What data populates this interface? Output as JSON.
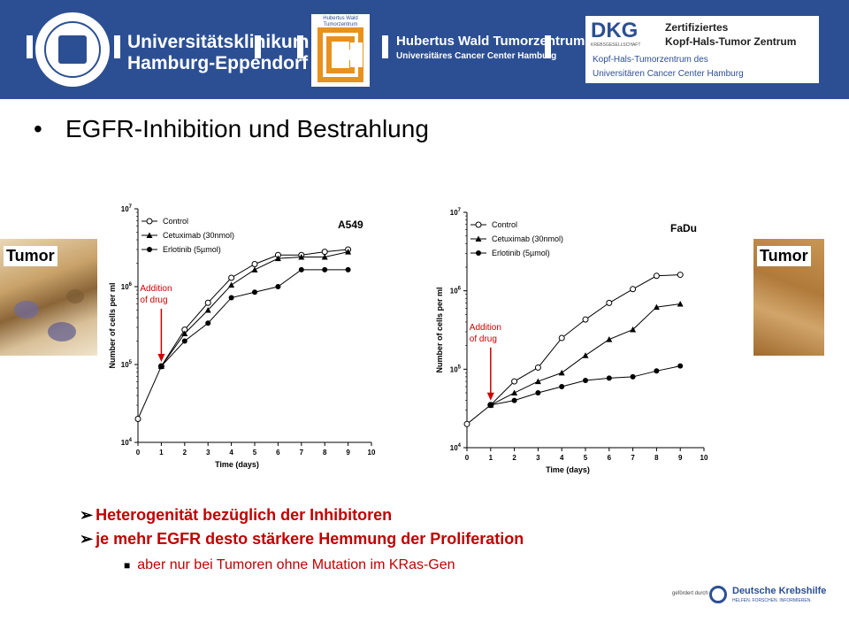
{
  "header": {
    "university": {
      "line1": "Universitätsklinikum",
      "line2": "Hamburg-Eppendorf"
    },
    "hubertus_logo_caption": "Hubertus Wald Tumorzentrum",
    "hubertus": {
      "line1": "Hubertus Wald Tumorzentrum",
      "line2": "Universitäres Cancer Center Hamburg"
    },
    "dkg": {
      "logo": "DKG",
      "logo_sub": "KREBSGESELLSCHAFT",
      "cert_line1": "Zertifiziertes",
      "cert_line2": "Kopf-Hals-Tumor Zentrum",
      "sub_line1": "Kopf-Hals-Tumorzentrum des",
      "sub_line2": "Universitären Cancer Center Hamburg"
    },
    "colors": {
      "header_bg": "#2c4f93",
      "logo_orange": "#e8911e"
    }
  },
  "slide": {
    "bullet": "•",
    "title": "EGFR-Inhibition und Bestrahlung",
    "tumor_label_left": "Tumor",
    "tumor_label_right": "Tumor",
    "points": [
      "Heterogenität bezüglich der Inhibitoren",
      "je mehr EGFR desto stärkere Hemmung der Proliferation"
    ],
    "sub_point": "aber nur bei Tumoren ohne Mutation im KRas-Gen",
    "text_color": "#c00000"
  },
  "chart_data": [
    {
      "type": "line",
      "panel": "A549",
      "xlabel": "Time (days)",
      "ylabel": "Number of cells per ml",
      "xlim": [
        0,
        10
      ],
      "ylim": [
        10000,
        10000000
      ],
      "yscale": "log",
      "x_ticks": [
        0,
        1,
        2,
        3,
        4,
        5,
        6,
        7,
        8,
        9,
        10
      ],
      "y_ticks": [
        {
          "value": 10000,
          "exp": "4"
        },
        {
          "value": 100000,
          "exp": "5"
        },
        {
          "value": 1000000,
          "exp": "6"
        },
        {
          "value": 10000000,
          "exp": "7"
        }
      ],
      "annotation": {
        "line1": "Addition",
        "line2": "of drug",
        "x": 1,
        "color": "#cc0000"
      },
      "legend_position": "top-left",
      "series": [
        {
          "name": "Control",
          "marker": "open-circle",
          "x": [
            0,
            1,
            2,
            3,
            4,
            5,
            6,
            7,
            8,
            9
          ],
          "y": [
            20000,
            95000,
            280000,
            620000,
            1300000,
            1950000,
            2550000,
            2550000,
            2800000,
            3000000
          ]
        },
        {
          "name": "Cetuximab (30nmol)",
          "marker": "filled-triangle",
          "x": [
            1,
            2,
            3,
            4,
            5,
            6,
            7,
            8,
            9
          ],
          "y": [
            95000,
            250000,
            500000,
            1050000,
            1650000,
            2300000,
            2400000,
            2400000,
            2800000
          ]
        },
        {
          "name": "Erlotinib (5µmol)",
          "marker": "filled-circle",
          "x": [
            1,
            2,
            3,
            4,
            5,
            6,
            7,
            8,
            9
          ],
          "y": [
            95000,
            200000,
            340000,
            720000,
            850000,
            1000000,
            1650000,
            1650000,
            1650000
          ]
        }
      ]
    },
    {
      "type": "line",
      "panel": "FaDu",
      "xlabel": "Time (days)",
      "ylabel": "Number of cells per ml",
      "xlim": [
        0,
        10
      ],
      "ylim": [
        10000,
        10000000
      ],
      "yscale": "log",
      "x_ticks": [
        0,
        1,
        2,
        3,
        4,
        5,
        6,
        7,
        8,
        9,
        10
      ],
      "y_ticks": [
        {
          "value": 10000,
          "exp": "4"
        },
        {
          "value": 100000,
          "exp": "5"
        },
        {
          "value": 1000000,
          "exp": "6"
        },
        {
          "value": 10000000,
          "exp": "7"
        }
      ],
      "annotation": {
        "line1": "Addition",
        "line2": "of drug",
        "x": 1,
        "color": "#cc0000"
      },
      "legend_position": "top-left",
      "series": [
        {
          "name": "Control",
          "marker": "open-circle",
          "x": [
            0,
            1,
            2,
            3,
            4,
            5,
            6,
            7,
            8,
            9
          ],
          "y": [
            20000,
            35000,
            70000,
            105000,
            250000,
            430000,
            700000,
            1050000,
            1550000,
            1600000
          ]
        },
        {
          "name": "Cetuximab (30nmol)",
          "marker": "filled-triangle",
          "x": [
            1,
            2,
            3,
            4,
            5,
            6,
            7,
            8,
            9
          ],
          "y": [
            35000,
            50000,
            70000,
            90000,
            150000,
            240000,
            320000,
            620000,
            680000
          ]
        },
        {
          "name": "Erlotinib (5µmol)",
          "marker": "filled-circle",
          "x": [
            1,
            2,
            3,
            4,
            5,
            6,
            7,
            8,
            9
          ],
          "y": [
            35000,
            40000,
            50000,
            60000,
            72000,
            77000,
            80000,
            95000,
            110000
          ]
        }
      ]
    }
  ],
  "footer": {
    "supported_by": "gefördert durch",
    "org": "Deutsche Krebshilfe",
    "slogan": "HELFEN. FORSCHEN. INFORMIEREN."
  }
}
